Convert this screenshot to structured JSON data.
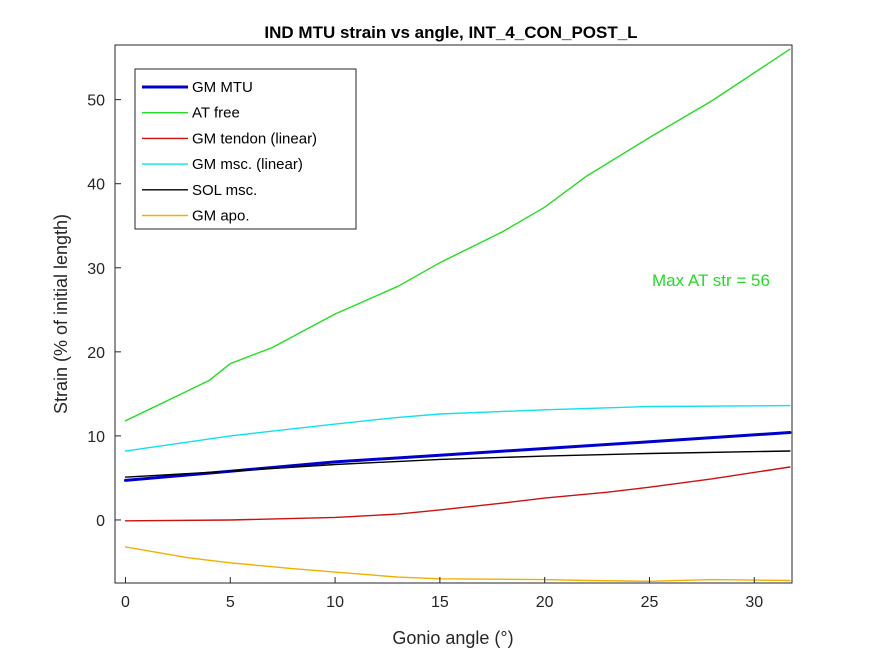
{
  "chart_data": {
    "type": "line",
    "title": "IND MTU strain vs angle, INT_4_CON_POST_L",
    "xlabel": "Gonio angle (°)",
    "ylabel": "Strain (% of initial length)",
    "xlim": [
      -0.5,
      31.8
    ],
    "ylim": [
      -7.5,
      56.5
    ],
    "xticks": [
      0,
      5,
      10,
      15,
      20,
      25,
      30
    ],
    "yticks": [
      0,
      10,
      20,
      30,
      40,
      50
    ],
    "grid": false,
    "legend_position": "top-left",
    "series": [
      {
        "name": "GM MTU",
        "color": "#0000cc",
        "width": 3,
        "x": [
          0,
          5,
          10,
          15,
          20,
          25,
          31.7
        ],
        "y": [
          4.7,
          5.8,
          6.9,
          7.7,
          8.5,
          9.3,
          10.4
        ]
      },
      {
        "name": "AT free",
        "color": "#22dd22",
        "width": 1.4,
        "x": [
          0,
          2,
          4,
          5,
          7,
          10,
          13,
          15,
          18,
          20,
          22,
          25,
          28,
          31.7
        ],
        "y": [
          11.8,
          14.2,
          16.6,
          18.6,
          20.5,
          24.5,
          27.8,
          30.6,
          34.3,
          37.2,
          40.9,
          45.5,
          49.9,
          56.0
        ]
      },
      {
        "name": "GM tendon (linear)",
        "color": "#cc1111",
        "width": 1.4,
        "x": [
          0,
          5,
          10,
          13,
          15,
          18,
          20,
          23,
          25,
          28,
          31.7
        ],
        "y": [
          -0.1,
          0.0,
          0.3,
          0.7,
          1.2,
          2.0,
          2.6,
          3.3,
          3.9,
          4.9,
          6.3
        ]
      },
      {
        "name": "GM msc. (linear)",
        "color": "#11e0ee",
        "width": 1.4,
        "x": [
          0,
          5,
          10,
          13,
          15,
          20,
          25,
          31.7
        ],
        "y": [
          8.2,
          10.0,
          11.4,
          12.2,
          12.6,
          13.1,
          13.5,
          13.6
        ]
      },
      {
        "name": "SOL msc.",
        "color": "#000000",
        "width": 1.4,
        "x": [
          0,
          5,
          10,
          15,
          20,
          25,
          31.7
        ],
        "y": [
          5.1,
          5.8,
          6.6,
          7.2,
          7.6,
          7.9,
          8.2
        ]
      },
      {
        "name": "GM apo.",
        "color": "#f0b000",
        "width": 1.4,
        "x": [
          0,
          3,
          5,
          8,
          10,
          13,
          15,
          20,
          22,
          25,
          28,
          31.7
        ],
        "y": [
          -3.2,
          -4.5,
          -5.1,
          -5.8,
          -6.2,
          -6.8,
          -7.0,
          -7.1,
          -7.2,
          -7.3,
          -7.1,
          -7.2
        ]
      }
    ],
    "annotations": [
      {
        "text": "Max AT str = 56",
        "color": "#22dd22",
        "position": "right"
      }
    ]
  }
}
